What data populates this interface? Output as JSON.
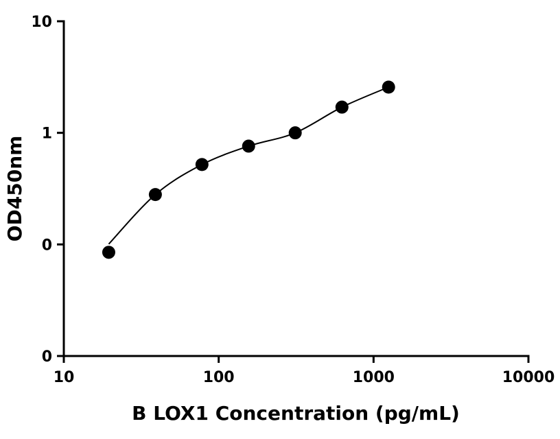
{
  "chart_data": {
    "type": "scatter",
    "title": "",
    "xlabel": "B LOX1 Concentration (pg/mL)",
    "ylabel": "OD450nm",
    "xscale": "log",
    "yscale": "log",
    "xlim": [
      10,
      10000
    ],
    "ylim": [
      0.01,
      10
    ],
    "x_ticks": [
      {
        "value": 10,
        "label": "10"
      },
      {
        "value": 100,
        "label": "100"
      },
      {
        "value": 1000,
        "label": "1000"
      },
      {
        "value": 10000,
        "label": "10000"
      }
    ],
    "y_ticks": [
      {
        "value": 0.01,
        "label": "0"
      },
      {
        "value": 0.1,
        "label": "0"
      },
      {
        "value": 1,
        "label": "1"
      },
      {
        "value": 10,
        "label": "10"
      }
    ],
    "grid": false,
    "legend": "none",
    "series": [
      {
        "x": [
          19.5,
          39,
          78,
          156,
          312,
          625,
          1250
        ],
        "y": [
          0.085,
          0.28,
          0.52,
          0.76,
          1.0,
          1.7,
          2.57
        ],
        "fit_curve": true
      }
    ],
    "colors": {
      "marker": "#000000",
      "line": "#000000",
      "axis": "#000000"
    }
  }
}
